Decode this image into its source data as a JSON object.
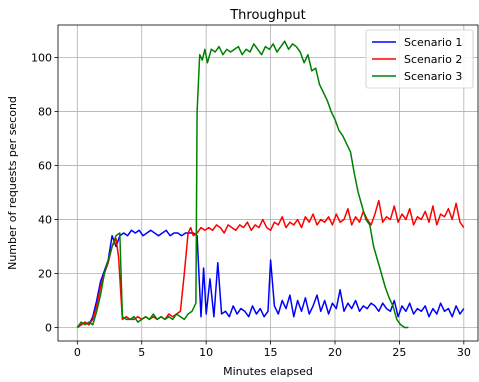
{
  "chart_data": {
    "type": "line",
    "title": "Throughput",
    "xlabel": "Minutes elapsed",
    "ylabel": "Number of requests per second",
    "xlim": [
      -1.5,
      31.1
    ],
    "ylim": [
      -5,
      112
    ],
    "xticks": [
      0,
      5,
      10,
      15,
      20,
      25,
      30
    ],
    "yticks": [
      0,
      20,
      40,
      60,
      80,
      100
    ],
    "grid": true,
    "legend_position": "top-right",
    "series": [
      {
        "name": "Scenario 1",
        "color": "#0000ff",
        "x": [
          0,
          0.3,
          0.6,
          0.9,
          1.2,
          1.5,
          1.8,
          2.1,
          2.4,
          2.7,
          3.0,
          3.3,
          3.6,
          3.9,
          4.2,
          4.5,
          4.8,
          5.1,
          5.4,
          5.7,
          6.0,
          6.3,
          6.6,
          6.9,
          7.2,
          7.5,
          7.8,
          8.1,
          8.4,
          8.7,
          9.0,
          9.3,
          9.6,
          9.8,
          10.0,
          10.3,
          10.6,
          10.9,
          11.2,
          11.5,
          11.8,
          12.1,
          12.4,
          12.7,
          13.0,
          13.3,
          13.6,
          13.9,
          14.2,
          14.5,
          14.8,
          15.0,
          15.3,
          15.6,
          15.9,
          16.2,
          16.5,
          16.8,
          17.1,
          17.4,
          17.7,
          18.0,
          18.3,
          18.6,
          18.9,
          19.2,
          19.5,
          19.8,
          20.1,
          20.4,
          20.7,
          21.0,
          21.3,
          21.6,
          21.9,
          22.2,
          22.5,
          22.8,
          23.1,
          23.4,
          23.7,
          24.0,
          24.3,
          24.6,
          24.9,
          25.2,
          25.5,
          25.8,
          26.1,
          26.4,
          26.7,
          27.0,
          27.3,
          27.6,
          27.9,
          28.2,
          28.5,
          28.8,
          29.1,
          29.4,
          29.7,
          30.0
        ],
        "y": [
          0,
          1,
          2,
          1,
          4,
          10,
          17,
          21,
          25,
          34,
          30,
          34,
          35,
          34,
          36,
          35,
          36,
          34,
          35,
          36,
          35,
          34,
          35,
          36,
          34,
          35,
          35,
          34,
          35,
          35,
          35,
          34,
          4,
          22,
          5,
          18,
          4,
          24,
          5,
          6,
          4,
          8,
          5,
          7,
          6,
          4,
          8,
          5,
          7,
          4,
          6,
          25,
          8,
          5,
          10,
          7,
          12,
          4,
          10,
          6,
          11,
          5,
          8,
          12,
          6,
          10,
          5,
          9,
          7,
          14,
          6,
          9,
          7,
          10,
          6,
          8,
          7,
          9,
          8,
          6,
          9,
          7,
          6,
          10,
          4,
          8,
          6,
          9,
          5,
          7,
          6,
          8,
          4,
          7,
          5,
          9,
          6,
          7,
          4,
          8,
          5,
          7
        ]
      },
      {
        "name": "Scenario 2",
        "color": "#ff0000",
        "x": [
          0,
          0.3,
          0.6,
          0.9,
          1.2,
          1.5,
          1.8,
          2.1,
          2.4,
          2.7,
          3.0,
          3.2,
          3.5,
          3.8,
          4.1,
          4.4,
          4.7,
          5.0,
          5.3,
          5.6,
          5.9,
          6.2,
          6.5,
          6.8,
          7.1,
          7.4,
          7.7,
          8.0,
          8.3,
          8.6,
          8.8,
          9.0,
          9.3,
          9.6,
          9.9,
          10.2,
          10.5,
          10.8,
          11.1,
          11.4,
          11.7,
          12.0,
          12.3,
          12.6,
          12.9,
          13.2,
          13.5,
          13.8,
          14.1,
          14.4,
          14.7,
          15.0,
          15.3,
          15.6,
          15.9,
          16.2,
          16.5,
          16.8,
          17.1,
          17.4,
          17.7,
          18.0,
          18.3,
          18.6,
          18.9,
          19.2,
          19.5,
          19.8,
          20.1,
          20.4,
          20.7,
          21.0,
          21.3,
          21.6,
          21.9,
          22.2,
          22.5,
          22.8,
          23.1,
          23.4,
          23.7,
          24.0,
          24.3,
          24.6,
          24.9,
          25.2,
          25.5,
          25.8,
          26.1,
          26.4,
          26.7,
          27.0,
          27.3,
          27.6,
          27.9,
          28.2,
          28.5,
          28.8,
          29.1,
          29.4,
          29.7,
          30.0
        ],
        "y": [
          0,
          1,
          2,
          1,
          3,
          8,
          15,
          20,
          24,
          30,
          33,
          26,
          3,
          4,
          3,
          3,
          4,
          3,
          4,
          3,
          4,
          3,
          4,
          3,
          5,
          4,
          5,
          6,
          20,
          35,
          37,
          34,
          35,
          37,
          36,
          37,
          36,
          38,
          37,
          35,
          38,
          37,
          36,
          38,
          37,
          39,
          36,
          38,
          37,
          40,
          37,
          36,
          39,
          38,
          41,
          37,
          39,
          38,
          40,
          37,
          41,
          39,
          42,
          38,
          40,
          39,
          41,
          38,
          42,
          39,
          40,
          44,
          38,
          41,
          39,
          43,
          40,
          38,
          42,
          47,
          39,
          41,
          40,
          45,
          39,
          42,
          40,
          44,
          38,
          41,
          40,
          43,
          39,
          45,
          38,
          42,
          41,
          44,
          40,
          46,
          39,
          37
        ]
      },
      {
        "name": "Scenario 3",
        "color": "#008000",
        "x": [
          0,
          0.3,
          0.6,
          0.9,
          1.2,
          1.5,
          1.8,
          2.1,
          2.4,
          2.7,
          3.0,
          3.3,
          3.5,
          3.8,
          4.1,
          4.4,
          4.7,
          5.0,
          5.3,
          5.6,
          5.9,
          6.2,
          6.5,
          6.8,
          7.1,
          7.4,
          7.7,
          8.0,
          8.3,
          8.6,
          8.9,
          9.2,
          9.3,
          9.5,
          9.7,
          9.9,
          10.1,
          10.4,
          10.7,
          11.0,
          11.3,
          11.6,
          11.9,
          12.2,
          12.5,
          12.8,
          13.1,
          13.4,
          13.7,
          14.0,
          14.3,
          14.6,
          14.9,
          15.2,
          15.5,
          15.8,
          16.1,
          16.4,
          16.7,
          17.0,
          17.3,
          17.6,
          17.9,
          18.2,
          18.5,
          18.8,
          19.1,
          19.4,
          19.7,
          20.0,
          20.3,
          20.6,
          20.9,
          21.2,
          21.5,
          21.8,
          22.1,
          22.4,
          22.7,
          23.0,
          23.3,
          23.6,
          23.9,
          24.2,
          24.5,
          24.8,
          25.1,
          25.4,
          25.7
        ],
        "y": [
          0,
          2,
          1,
          2,
          1,
          6,
          12,
          20,
          25,
          30,
          34,
          35,
          4,
          3,
          3,
          4,
          2,
          3,
          4,
          3,
          5,
          3,
          4,
          3,
          4,
          3,
          5,
          4,
          3,
          5,
          6,
          9,
          80,
          101,
          99,
          103,
          98,
          103,
          102,
          104,
          101,
          103,
          102,
          103,
          104,
          101,
          103,
          102,
          105,
          103,
          101,
          104,
          103,
          105,
          102,
          104,
          106,
          103,
          105,
          104,
          102,
          98,
          101,
          95,
          96,
          90,
          87,
          84,
          80,
          77,
          73,
          71,
          68,
          65,
          57,
          50,
          45,
          40,
          38,
          30,
          25,
          20,
          15,
          11,
          8,
          3,
          1,
          0,
          0
        ]
      }
    ]
  }
}
